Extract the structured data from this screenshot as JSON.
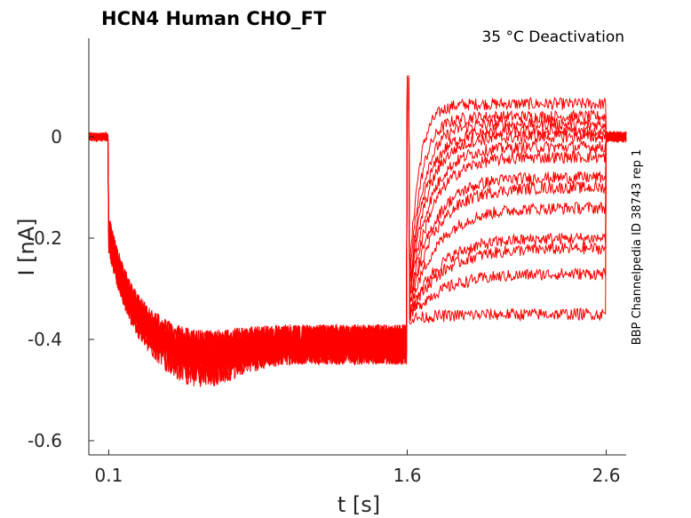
{
  "chart_data": {
    "type": "line",
    "title": "HCN4  Human  CHO_FT",
    "annotation": "35 °C  Deactivation",
    "side_label": "BBP Channelpedia ID 38743 rep 1",
    "xlabel": "t [s]",
    "ylabel": "I [nA]",
    "xlim": [
      0.0,
      2.7
    ],
    "ylim": [
      -0.63,
      0.2
    ],
    "xticks": [
      0.1,
      1.6,
      2.6
    ],
    "xtick_labels": [
      "0.1",
      "1.6",
      "2.6"
    ],
    "yticks": [
      0,
      -0.2,
      -0.4,
      -0.6
    ],
    "ytick_labels": [
      "0",
      "-0.2",
      "-0.4",
      "-0.6"
    ],
    "grid": false,
    "line_color": "#ff0000",
    "protocol": {
      "baseline_current": 0.0,
      "step_on": 0.1,
      "step_off": 1.6,
      "tail_end": 2.6,
      "activated_current": -0.41
    },
    "series": [
      {
        "tail_steady": 0.065
      },
      {
        "tail_steady": 0.04
      },
      {
        "tail_steady": 0.025
      },
      {
        "tail_steady": 0.01
      },
      {
        "tail_steady": 0.0
      },
      {
        "tail_steady": -0.02
      },
      {
        "tail_steady": -0.04
      },
      {
        "tail_steady": -0.08
      },
      {
        "tail_steady": -0.1
      },
      {
        "tail_steady": -0.14
      },
      {
        "tail_steady": -0.2
      },
      {
        "tail_steady": -0.22
      },
      {
        "tail_steady": -0.27
      },
      {
        "tail_steady": -0.35
      }
    ]
  }
}
